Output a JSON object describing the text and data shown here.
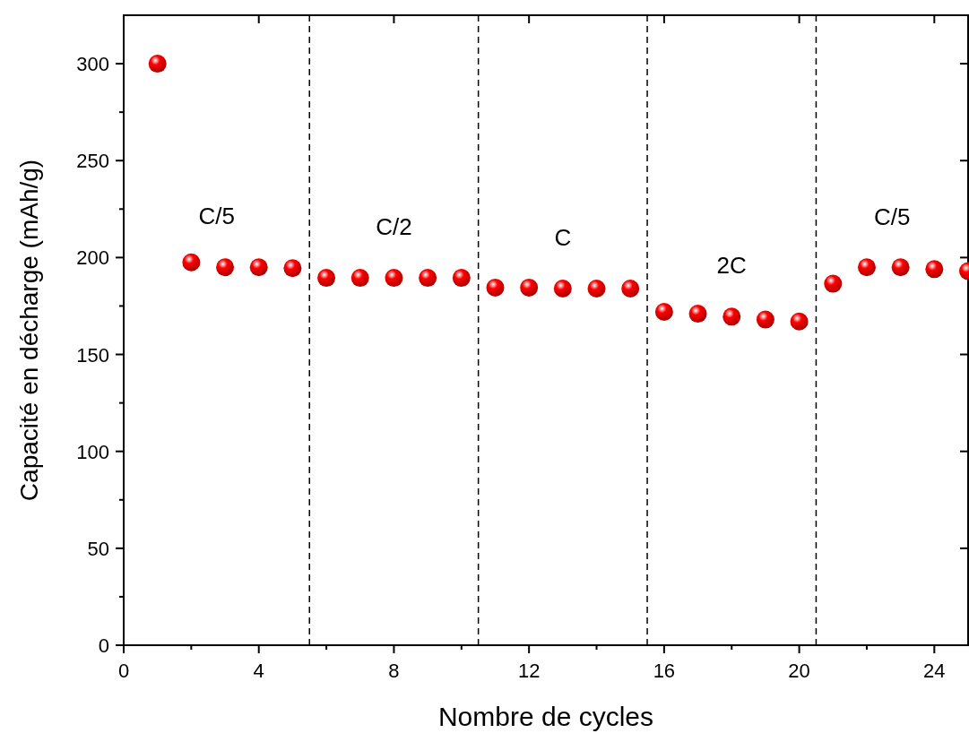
{
  "chart_data": {
    "type": "scatter",
    "xlabel": "Nombre de cycles",
    "ylabel": "Capacité en décharge (mAh/g)",
    "x": [
      1,
      2,
      3,
      4,
      5,
      6,
      7,
      8,
      9,
      10,
      11,
      12,
      13,
      14,
      15,
      16,
      17,
      18,
      19,
      20,
      21,
      22,
      23,
      24,
      25
    ],
    "series": [
      {
        "color": "#ff0000",
        "values": [
          300,
          197.5,
          195,
          195,
          194.5,
          189.5,
          189.5,
          189.5,
          189.5,
          189.5,
          184.5,
          184.5,
          184,
          184,
          184,
          172,
          171,
          169.5,
          168,
          167,
          186.5,
          195,
          195,
          194,
          193
        ]
      }
    ],
    "marker": "circle",
    "xlim": [
      0,
      25
    ],
    "ylim": [
      0,
      325
    ],
    "xticks": [
      0,
      4,
      8,
      12,
      16,
      20,
      24
    ],
    "yticks": [
      0,
      50,
      100,
      150,
      200,
      250,
      300
    ],
    "ref_lines": [
      {
        "axis": "x",
        "value": 5.5,
        "line_style": "dashed",
        "color": "#000000"
      },
      {
        "axis": "x",
        "value": 10.5,
        "line_style": "dashed",
        "color": "#000000"
      },
      {
        "axis": "x",
        "value": 15.5,
        "line_style": "dashed",
        "color": "#000000"
      },
      {
        "axis": "x",
        "value": 20.5,
        "line_style": "dashed",
        "color": "#000000"
      }
    ],
    "annotations": [
      "C/5",
      "C/2",
      "C",
      "2C",
      "C/5"
    ],
    "grid": false
  }
}
